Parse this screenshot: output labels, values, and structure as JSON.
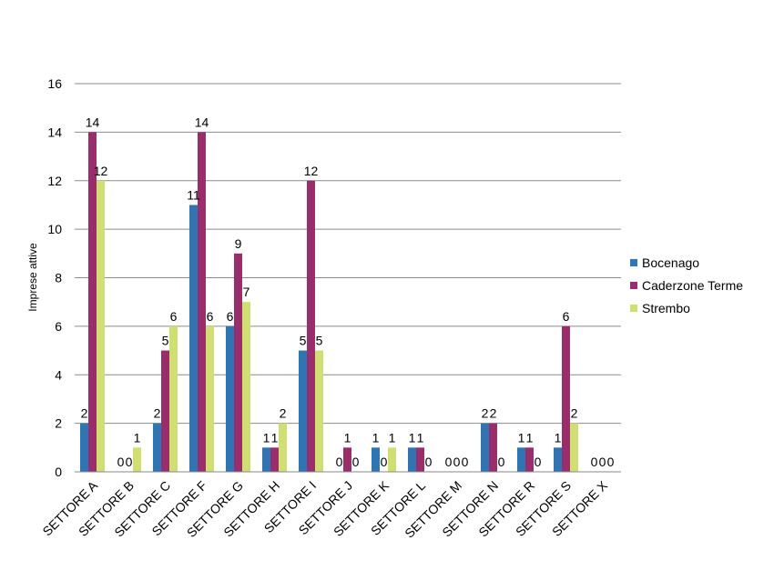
{
  "chart_data": {
    "type": "bar",
    "title": "",
    "xlabel": "",
    "ylabel": "Imprese attive",
    "ylim": [
      0,
      16
    ],
    "yticks": [
      0,
      2,
      4,
      6,
      8,
      10,
      12,
      14,
      16
    ],
    "grid": true,
    "legend_position": "right",
    "categories": [
      "SETTORE A",
      "SETTORE B",
      "SETTORE C",
      "SETTORE F",
      "SETTORE G",
      "SETTORE H",
      "SETTORE I",
      "SETTORE J",
      "SETTORE K",
      "SETTORE L",
      "SETTORE M",
      "SETTORE N",
      "SETTORE R",
      "SETTORE S",
      "SETTORE X"
    ],
    "series": [
      {
        "name": "Bocenago",
        "color": "#2e75b6",
        "values": [
          2,
          0,
          2,
          11,
          6,
          1,
          5,
          0,
          1,
          1,
          0,
          2,
          1,
          1,
          0
        ]
      },
      {
        "name": "Caderzone Terme",
        "color": "#9b2d6a",
        "values": [
          14,
          0,
          5,
          14,
          9,
          1,
          12,
          1,
          0,
          1,
          0,
          2,
          1,
          6,
          0
        ]
      },
      {
        "name": "Strembo",
        "color": "#cfe070",
        "values": [
          12,
          1,
          6,
          6,
          7,
          2,
          5,
          0,
          1,
          0,
          0,
          0,
          0,
          2,
          0
        ]
      }
    ]
  }
}
